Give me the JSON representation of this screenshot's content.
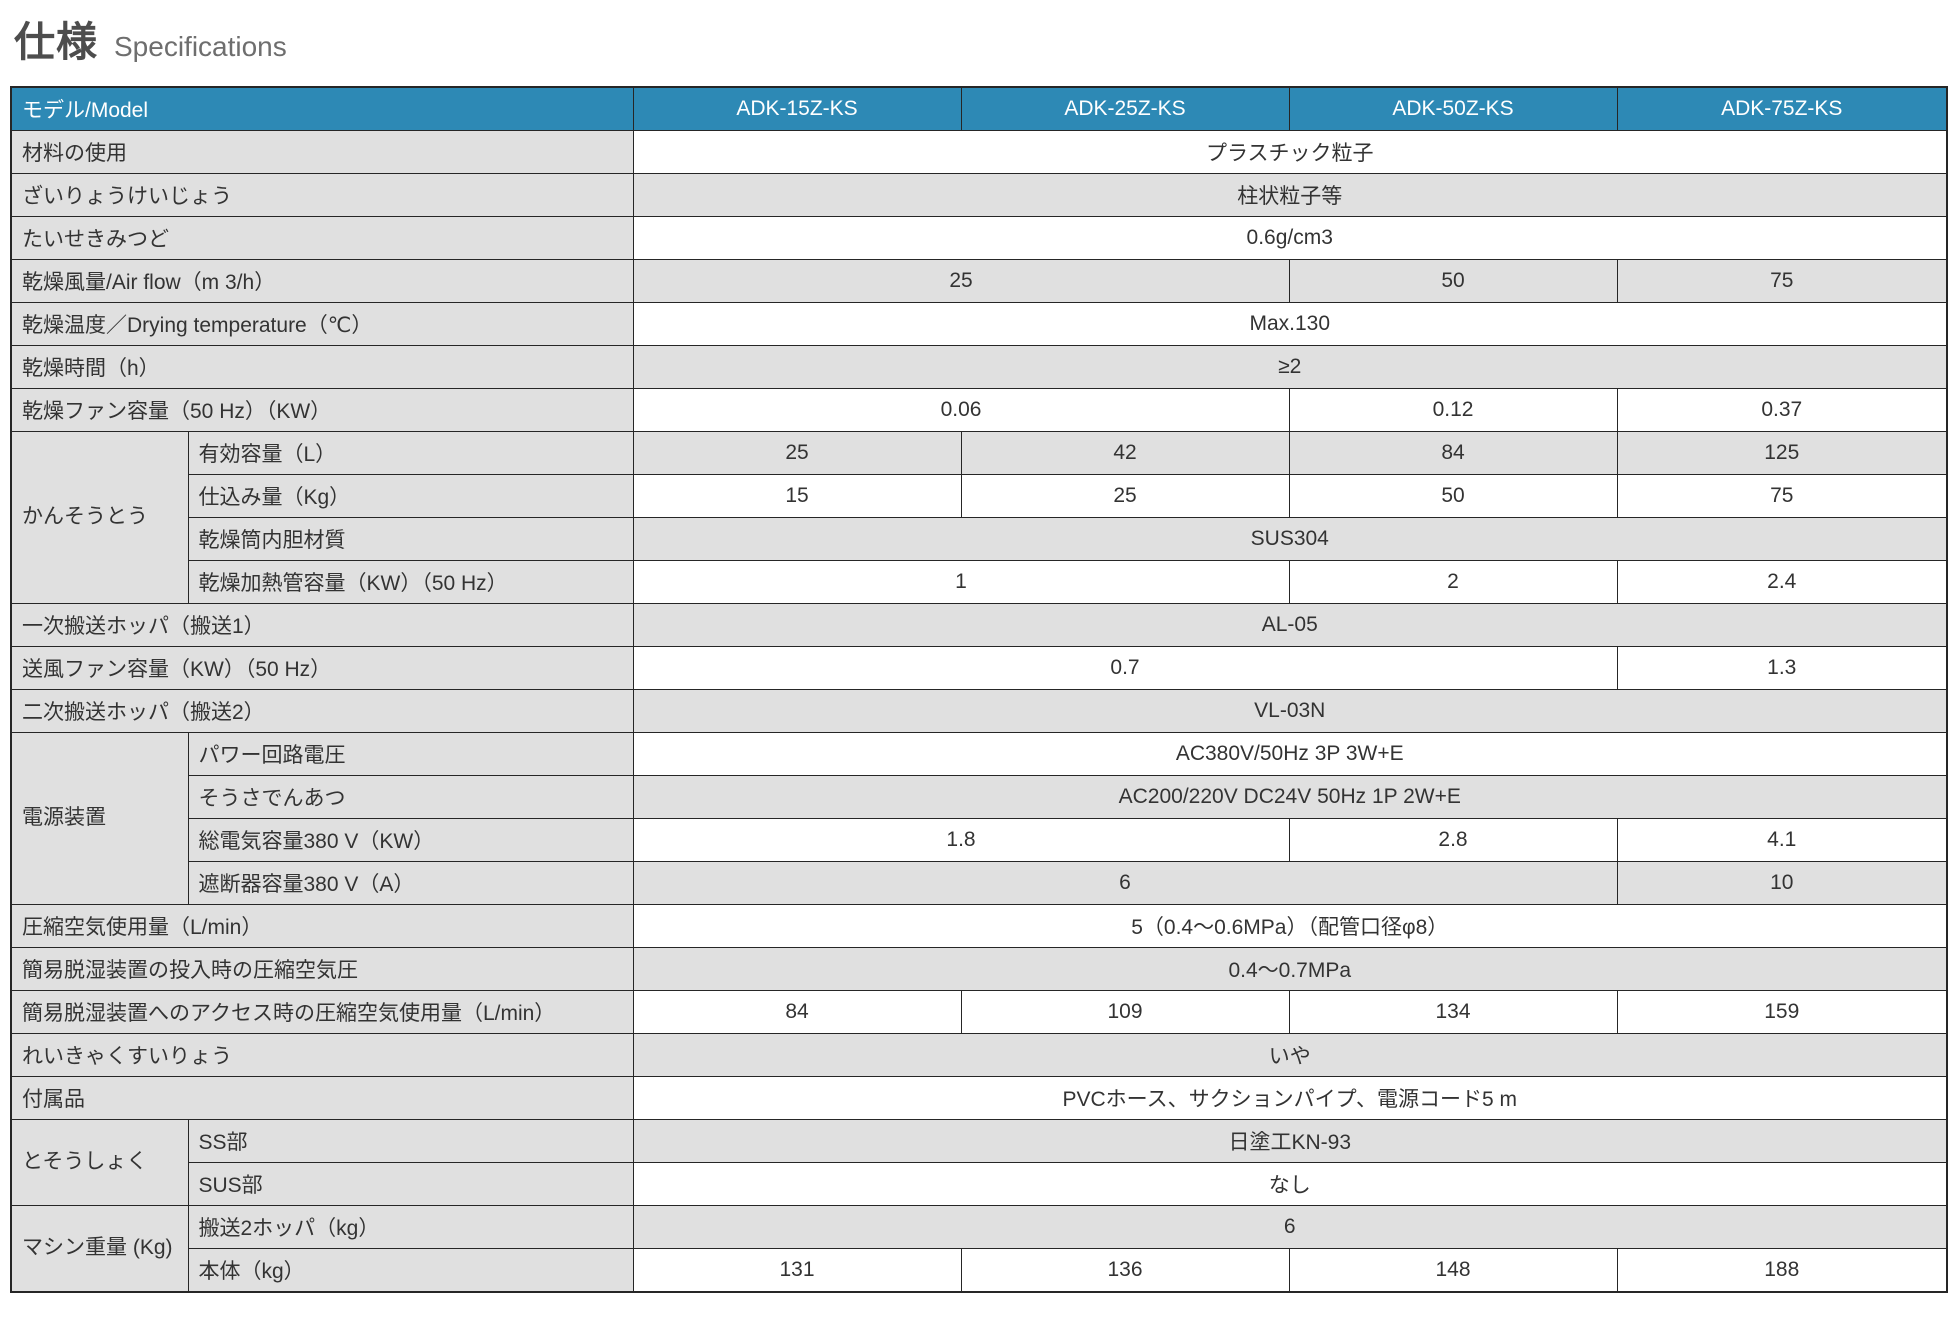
{
  "page": {
    "title_ja": "仕様",
    "title_en": "Specifications"
  },
  "colors": {
    "header_bg": "#2d89b5",
    "header_text": "#ffffff",
    "shaded_cell_bg": "#e0e0e0",
    "plain_cell_bg": "#ffffff",
    "border": "#262626",
    "text": "#333333",
    "title_ja_color": "#4d4d4d",
    "title_en_color": "#6e6e6e"
  },
  "table": {
    "header": {
      "label": "モデル/Model",
      "models": [
        "ADK-15Z-KS",
        "ADK-25Z-KS",
        "ADK-50Z-KS",
        "ADK-75Z-KS"
      ]
    },
    "rows": [
      {
        "label": "材料の使用",
        "label_span": 2,
        "cells": [
          {
            "span": 4,
            "text": "プラスチック粒子"
          }
        ]
      },
      {
        "label": "ざいりょうけいじょう",
        "label_span": 2,
        "cells": [
          {
            "span": 4,
            "text": "柱状粒子等"
          }
        ]
      },
      {
        "label": "たいせきみつど",
        "label_span": 2,
        "cells": [
          {
            "span": 4,
            "text": "0.6g/cm3"
          }
        ]
      },
      {
        "label": "乾燥風量/Air flow（m 3/h）",
        "label_span": 2,
        "cells": [
          {
            "span": 2,
            "text": "25"
          },
          {
            "span": 1,
            "text": "50"
          },
          {
            "span": 1,
            "text": "75"
          }
        ]
      },
      {
        "label": "乾燥温度／Drying temperature（℃）",
        "label_span": 2,
        "cells": [
          {
            "span": 4,
            "text": "Max.130"
          }
        ]
      },
      {
        "label": "乾燥時間（h）",
        "label_span": 2,
        "cells": [
          {
            "span": 4,
            "text": "≥2"
          }
        ]
      },
      {
        "label": "乾燥ファン容量（50 Hz）（KW）",
        "label_span": 2,
        "cells": [
          {
            "span": 2,
            "text": "0.06"
          },
          {
            "span": 1,
            "text": "0.12"
          },
          {
            "span": 1,
            "text": "0.37"
          }
        ]
      },
      {
        "group": {
          "label": "かんそうとう",
          "rowspan": 4
        },
        "label": "有効容量（L）",
        "label_span": 1,
        "cells": [
          {
            "span": 1,
            "text": "25"
          },
          {
            "span": 1,
            "text": "42"
          },
          {
            "span": 1,
            "text": "84"
          },
          {
            "span": 1,
            "text": "125"
          }
        ]
      },
      {
        "label": "仕込み量（Kg）",
        "label_span": 1,
        "cells": [
          {
            "span": 1,
            "text": "15"
          },
          {
            "span": 1,
            "text": "25"
          },
          {
            "span": 1,
            "text": "50"
          },
          {
            "span": 1,
            "text": "75"
          }
        ]
      },
      {
        "label": "乾燥筒内胆材質",
        "label_span": 1,
        "cells": [
          {
            "span": 4,
            "text": "SUS304"
          }
        ]
      },
      {
        "label": "乾燥加熱管容量（KW）（50 Hz）",
        "label_span": 1,
        "cells": [
          {
            "span": 2,
            "text": "1"
          },
          {
            "span": 1,
            "text": "2"
          },
          {
            "span": 1,
            "text": "2.4"
          }
        ]
      },
      {
        "label": "一次搬送ホッパ（搬送1）",
        "label_span": 2,
        "cells": [
          {
            "span": 4,
            "text": "AL-05"
          }
        ]
      },
      {
        "label": "送風ファン容量（KW）（50 Hz）",
        "label_span": 2,
        "cells": [
          {
            "span": 3,
            "text": "0.7"
          },
          {
            "span": 1,
            "text": "1.3"
          }
        ]
      },
      {
        "label": "二次搬送ホッパ（搬送2）",
        "label_span": 2,
        "cells": [
          {
            "span": 4,
            "text": "VL-03N"
          }
        ]
      },
      {
        "group": {
          "label": "電源装置",
          "rowspan": 4
        },
        "label": "パワー回路電圧",
        "label_span": 1,
        "cells": [
          {
            "span": 4,
            "text": "AC380V/50Hz 3P 3W+E"
          }
        ]
      },
      {
        "label": "そうさでんあつ",
        "label_span": 1,
        "cells": [
          {
            "span": 4,
            "text": "AC200/220V DC24V 50Hz 1P 2W+E"
          }
        ]
      },
      {
        "label": "総電気容量380 V（KW）",
        "label_span": 1,
        "cells": [
          {
            "span": 2,
            "text": "1.8"
          },
          {
            "span": 1,
            "text": "2.8"
          },
          {
            "span": 1,
            "text": "4.1"
          }
        ]
      },
      {
        "label": "遮断器容量380 V（A）",
        "label_span": 1,
        "cells": [
          {
            "span": 3,
            "text": "6"
          },
          {
            "span": 1,
            "text": "10"
          }
        ]
      },
      {
        "label": "圧縮空気使用量（L/min）",
        "label_span": 2,
        "cells": [
          {
            "span": 4,
            "text": "5（0.4〜0.6MPa）（配管口径φ8）"
          }
        ]
      },
      {
        "label": "簡易脱湿装置の投入時の圧縮空気圧",
        "label_span": 2,
        "cells": [
          {
            "span": 4,
            "text": "0.4〜0.7MPa"
          }
        ]
      },
      {
        "label": "簡易脱湿装置へのアクセス時の圧縮空気使用量（L/min）",
        "label_span": 2,
        "cells": [
          {
            "span": 1,
            "text": "84"
          },
          {
            "span": 1,
            "text": "109"
          },
          {
            "span": 1,
            "text": "134"
          },
          {
            "span": 1,
            "text": "159"
          }
        ]
      },
      {
        "label": "れいきゃくすいりょう",
        "label_span": 2,
        "cells": [
          {
            "span": 4,
            "text": "いや"
          }
        ]
      },
      {
        "label": "付属品",
        "label_span": 2,
        "cells": [
          {
            "span": 4,
            "text": "PVCホース、サクションパイプ、電源コード5 m"
          }
        ]
      },
      {
        "group": {
          "label": "とそうしょく",
          "rowspan": 2
        },
        "label": "SS部",
        "label_span": 1,
        "cells": [
          {
            "span": 4,
            "text": "日塗工KN-93"
          }
        ]
      },
      {
        "label": "SUS部",
        "label_span": 1,
        "cells": [
          {
            "span": 4,
            "text": "なし"
          }
        ]
      },
      {
        "group": {
          "label": "マシン重量\n(Kg)",
          "rowspan": 2
        },
        "label": "搬送2ホッパ（kg）",
        "label_span": 1,
        "cells": [
          {
            "span": 4,
            "text": "6"
          }
        ]
      },
      {
        "label": "本体（kg）",
        "label_span": 1,
        "cells": [
          {
            "span": 1,
            "text": "131"
          },
          {
            "span": 1,
            "text": "136"
          },
          {
            "span": 1,
            "text": "148"
          },
          {
            "span": 1,
            "text": "188"
          }
        ]
      }
    ]
  }
}
